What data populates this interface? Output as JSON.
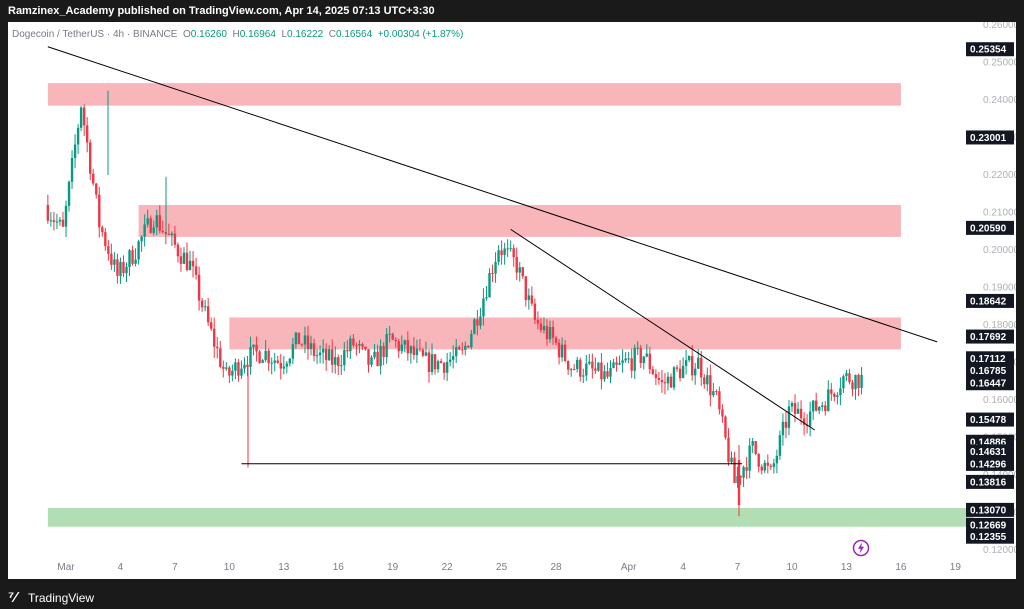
{
  "header": {
    "publisher": "Ramzinex_Academy published on TradingView.com, Apr 14, 2025 07:13 UTC+3:30"
  },
  "legend": {
    "symbol": "Dogecoin / TetherUS · 4h · BINANCE",
    "open_label": "O",
    "open": "0.16260",
    "high_label": "H",
    "high": "0.16964",
    "low_label": "L",
    "low": "0.16222",
    "close_label": "C",
    "close": "0.16564",
    "change": "+0.00304 (+1.87%)"
  },
  "footer": {
    "brand": "TradingView",
    "logo_icon": "tradingview-logo-icon"
  },
  "colors": {
    "up": "#089981",
    "down": "#f23645",
    "resistance": "#f7a8ae",
    "support": "#a6d8a8",
    "label_bg": "#131722"
  },
  "chart_data": {
    "type": "candlestick",
    "interval": "4h",
    "y_axis": {
      "ylim": [
        0.12,
        0.262
      ],
      "tick_labels": [
        "0.26000",
        "0.25000",
        "0.24000",
        "0.23000",
        "0.22000",
        "0.21000",
        "0.20000",
        "0.19000",
        "0.18000",
        "0.17000",
        "0.16000",
        "0.15000",
        "0.14000",
        "0.13000",
        "0.12000"
      ],
      "tick_values": [
        0.26,
        0.25,
        0.24,
        0.23,
        0.22,
        0.21,
        0.2,
        0.19,
        0.18,
        0.17,
        0.16,
        0.15,
        0.14,
        0.13,
        0.12
      ]
    },
    "price_labels": [
      {
        "text": "0.25354",
        "value": 0.25354
      },
      {
        "text": "0.23001",
        "value": 0.23001
      },
      {
        "text": "0.20590",
        "value": 0.2059
      },
      {
        "text": "0.18642",
        "value": 0.18642
      },
      {
        "text": "0.17692",
        "value": 0.17692
      },
      {
        "text": "0.17112",
        "value": 0.17112
      },
      {
        "text": "0.16785",
        "value": 0.16785
      },
      {
        "text": "0.16447",
        "value": 0.16447
      },
      {
        "text": "0.15478",
        "value": 0.15478
      },
      {
        "text": "0.14886",
        "value": 0.14886
      },
      {
        "text": "0.14631",
        "value": 0.14631
      },
      {
        "text": "0.14296",
        "value": 0.14296
      },
      {
        "text": "0.13816",
        "value": 0.13816
      },
      {
        "text": "0.13070",
        "value": 0.1307
      },
      {
        "text": "0.12669",
        "value": 0.12669
      },
      {
        "text": "0.12355",
        "value": 0.12355
      }
    ],
    "x_axis": {
      "tick_labels": [
        "Mar",
        "4",
        "7",
        "10",
        "13",
        "16",
        "19",
        "22",
        "25",
        "28",
        "Apr",
        "4",
        "7",
        "10",
        "13",
        "16",
        "19"
      ],
      "tick_dates": [
        "2025-03-01",
        "2025-03-04",
        "2025-03-07",
        "2025-03-10",
        "2025-03-13",
        "2025-03-16",
        "2025-03-19",
        "2025-03-22",
        "2025-03-25",
        "2025-03-28",
        "2025-04-01",
        "2025-04-04",
        "2025-04-07",
        "2025-04-10",
        "2025-04-13",
        "2025-04-16",
        "2025-04-19"
      ]
    },
    "zones": [
      {
        "type": "resistance",
        "from_date": "2025-02-28",
        "to_date": "2025-04-16",
        "low": 0.2385,
        "high": 0.2445
      },
      {
        "type": "resistance",
        "from_date": "2025-03-05",
        "to_date": "2025-04-16",
        "low": 0.2035,
        "high": 0.212
      },
      {
        "type": "resistance",
        "from_date": "2025-03-10",
        "to_date": "2025-04-16",
        "low": 0.1735,
        "high": 0.182
      },
      {
        "type": "support",
        "from_date": "2025-02-28",
        "to_date": "2025-04-20",
        "low": 0.1262,
        "high": 0.1312
      }
    ],
    "trendlines": [
      {
        "from": {
          "date": "2025-02-28",
          "price": 0.2542
        },
        "to": {
          "date": "2025-04-18",
          "price": 0.1755
        }
      },
      {
        "from": {
          "date": "2025-03-25 12:00",
          "price": 0.2055
        },
        "to": {
          "date": "2025-04-11 06:00",
          "price": 0.152
        }
      },
      {
        "from": {
          "date": "2025-03-10 16:00",
          "price": 0.143
        },
        "to": {
          "date": "2025-04-07 06:00",
          "price": 0.143
        }
      }
    ],
    "candles_per_day": 6,
    "series": [
      {
        "date": "2025-02-28",
        "close": 0.212
      },
      {
        "date": "2025-03-01",
        "close": 0.205
      },
      {
        "date": "2025-03-02",
        "close": 0.239
      },
      {
        "date": "2025-03-03",
        "close": 0.207
      },
      {
        "date": "2025-03-04",
        "close": 0.193
      },
      {
        "date": "2025-03-05",
        "close": 0.2
      },
      {
        "date": "2025-03-06",
        "close": 0.209
      },
      {
        "date": "2025-03-07",
        "close": 0.202
      },
      {
        "date": "2025-03-08",
        "close": 0.196
      },
      {
        "date": "2025-03-09",
        "close": 0.18
      },
      {
        "date": "2025-03-10",
        "close": 0.166
      },
      {
        "date": "2025-03-11",
        "close": 0.171
      },
      {
        "date": "2025-03-12",
        "close": 0.173
      },
      {
        "date": "2025-03-13",
        "close": 0.17
      },
      {
        "date": "2025-03-14",
        "close": 0.176
      },
      {
        "date": "2025-03-15",
        "close": 0.172
      },
      {
        "date": "2025-03-16",
        "close": 0.17
      },
      {
        "date": "2025-03-17",
        "close": 0.175
      },
      {
        "date": "2025-03-18",
        "close": 0.169
      },
      {
        "date": "2025-03-19",
        "close": 0.176
      },
      {
        "date": "2025-03-20",
        "close": 0.173
      },
      {
        "date": "2025-03-21",
        "close": 0.17
      },
      {
        "date": "2025-03-22",
        "close": 0.17
      },
      {
        "date": "2025-03-23",
        "close": 0.172
      },
      {
        "date": "2025-03-24",
        "close": 0.185
      },
      {
        "date": "2025-03-25",
        "close": 0.201
      },
      {
        "date": "2025-03-26",
        "close": 0.196
      },
      {
        "date": "2025-03-27",
        "close": 0.181
      },
      {
        "date": "2025-03-28",
        "close": 0.176
      },
      {
        "date": "2025-03-29",
        "close": 0.169
      },
      {
        "date": "2025-03-30",
        "close": 0.168
      },
      {
        "date": "2025-03-31",
        "close": 0.166
      },
      {
        "date": "2025-04-01",
        "close": 0.17
      },
      {
        "date": "2025-04-02",
        "close": 0.172
      },
      {
        "date": "2025-04-03",
        "close": 0.164
      },
      {
        "date": "2025-04-04",
        "close": 0.168
      },
      {
        "date": "2025-04-05",
        "close": 0.17
      },
      {
        "date": "2025-04-06",
        "close": 0.16
      },
      {
        "date": "2025-04-07",
        "close": 0.138
      },
      {
        "date": "2025-04-08",
        "close": 0.147
      },
      {
        "date": "2025-04-09",
        "close": 0.14
      },
      {
        "date": "2025-04-10",
        "close": 0.157
      },
      {
        "date": "2025-04-11",
        "close": 0.156
      },
      {
        "date": "2025-04-12",
        "close": 0.16
      },
      {
        "date": "2025-04-13",
        "close": 0.166
      },
      {
        "date": "2025-04-14",
        "close": 0.16564
      }
    ]
  }
}
